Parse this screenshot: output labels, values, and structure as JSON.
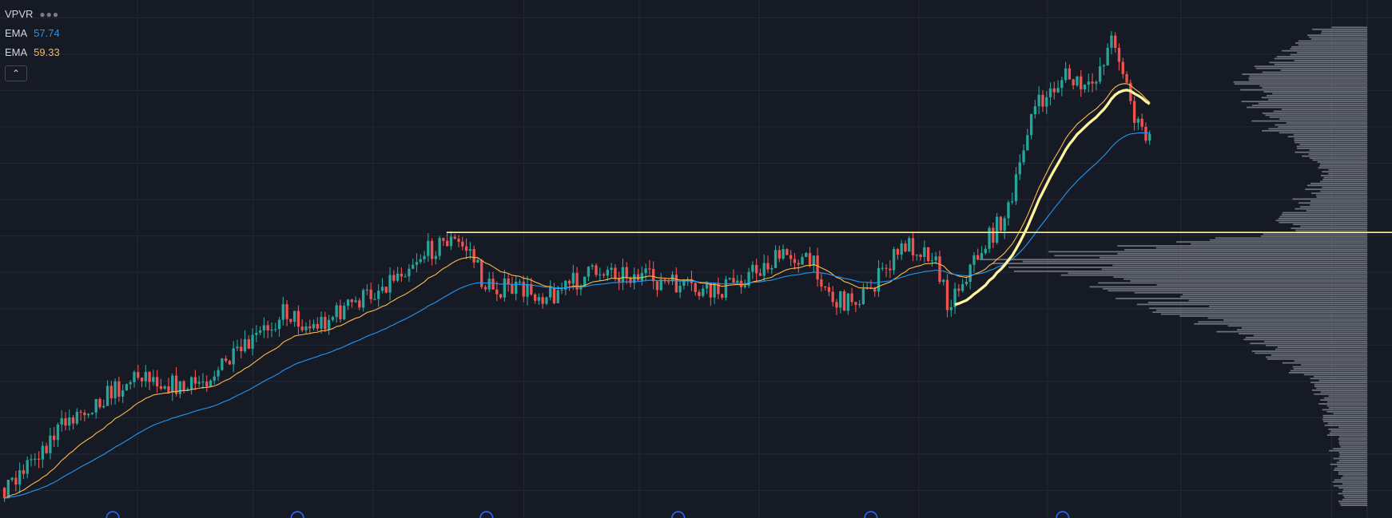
{
  "legend": {
    "indicators": [
      {
        "name": "VPVR"
      },
      {
        "name": "EMA",
        "value": 57.74,
        "color": "#2196f3"
      },
      {
        "name": "EMA",
        "value": 59.33,
        "color": "#ffb74d"
      }
    ]
  }
}
